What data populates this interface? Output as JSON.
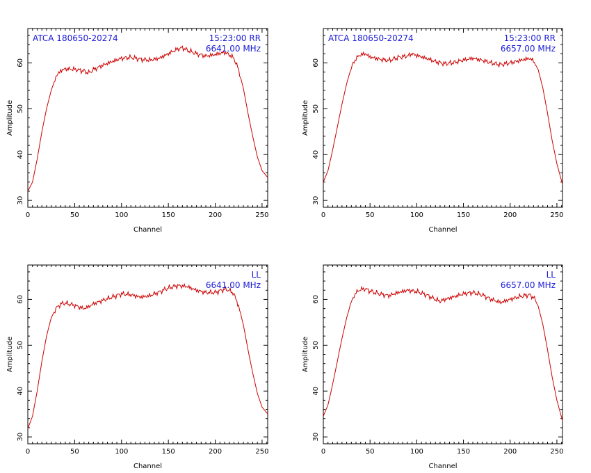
{
  "colors": {
    "line": "#cc0000",
    "annotation": "#1a1ad6",
    "axes": "#000000",
    "background": "#ffffff"
  },
  "chart_data": [
    {
      "type": "line",
      "title": "",
      "xlabel": "Channel",
      "ylabel": "Amplitude",
      "xlim": [
        0,
        256
      ],
      "ylim": [
        28.5,
        67.5
      ],
      "xticks": [
        0,
        50,
        100,
        150,
        200,
        250
      ],
      "yticks": [
        30,
        40,
        50,
        60
      ],
      "grid": false,
      "annotations": {
        "source": "ATCA 180650-20274",
        "time": "15:23:00",
        "pol": "RR",
        "freq": "6641.00 MHz"
      },
      "series": [
        {
          "x": [
            0,
            5,
            10,
            15,
            20,
            25,
            30,
            35,
            40,
            50,
            60,
            65,
            70,
            80,
            90,
            100,
            110,
            120,
            130,
            140,
            150,
            160,
            165,
            170,
            180,
            190,
            200,
            210,
            215,
            220,
            225,
            230,
            235,
            240,
            245,
            250,
            256
          ],
          "y": [
            32.0,
            34.0,
            39.0,
            45.0,
            50.0,
            54.0,
            57.0,
            58.3,
            58.7,
            58.6,
            58.2,
            57.8,
            58.5,
            59.5,
            60.3,
            61.0,
            61.2,
            60.8,
            60.6,
            61.0,
            62.0,
            63.0,
            63.3,
            62.8,
            62.0,
            61.5,
            61.8,
            62.3,
            61.8,
            61.0,
            58.5,
            54.5,
            49.0,
            44.0,
            39.5,
            36.5,
            35.0
          ]
        }
      ]
    },
    {
      "type": "line",
      "title": "",
      "xlabel": "Channel",
      "ylabel": "Amplitude",
      "xlim": [
        0,
        256
      ],
      "ylim": [
        28.5,
        67.5
      ],
      "xticks": [
        0,
        50,
        100,
        150,
        200,
        250
      ],
      "yticks": [
        30,
        40,
        50,
        60
      ],
      "grid": false,
      "annotations": {
        "source": "ATCA 180650-20274",
        "time": "15:23:00",
        "pol": "RR",
        "freq": "6657.00 MHz"
      },
      "series": [
        {
          "x": [
            0,
            5,
            10,
            15,
            20,
            25,
            30,
            35,
            40,
            45,
            50,
            60,
            70,
            80,
            90,
            95,
            100,
            110,
            120,
            130,
            140,
            150,
            160,
            170,
            180,
            190,
            200,
            210,
            220,
            225,
            230,
            235,
            240,
            245,
            250,
            256
          ],
          "y": [
            34.0,
            36.5,
            41.0,
            46.0,
            51.0,
            55.5,
            59.0,
            61.0,
            61.8,
            62.0,
            61.3,
            60.8,
            60.5,
            61.2,
            61.5,
            62.0,
            61.6,
            61.0,
            60.3,
            59.8,
            60.1,
            60.6,
            61.0,
            60.6,
            60.0,
            59.6,
            60.0,
            60.5,
            61.0,
            60.5,
            58.5,
            54.5,
            49.0,
            43.0,
            38.0,
            33.5
          ]
        }
      ]
    },
    {
      "type": "line",
      "title": "",
      "xlabel": "Channel",
      "ylabel": "Amplitude",
      "xlim": [
        0,
        256
      ],
      "ylim": [
        28.5,
        67.5
      ],
      "xticks": [
        0,
        50,
        100,
        150,
        200,
        250
      ],
      "yticks": [
        30,
        40,
        50,
        60
      ],
      "grid": false,
      "annotations": {
        "pol": "LL",
        "freq": "6641.00 MHz"
      },
      "series": [
        {
          "x": [
            0,
            5,
            10,
            15,
            20,
            25,
            30,
            35,
            40,
            50,
            55,
            60,
            65,
            70,
            80,
            90,
            100,
            110,
            120,
            130,
            140,
            150,
            160,
            170,
            180,
            190,
            200,
            210,
            215,
            220,
            225,
            230,
            235,
            240,
            245,
            250,
            256
          ],
          "y": [
            31.8,
            34.5,
            40.0,
            46.5,
            52.0,
            56.0,
            58.0,
            59.0,
            59.2,
            58.7,
            58.3,
            58.0,
            58.4,
            59.0,
            59.8,
            60.5,
            61.2,
            61.0,
            60.5,
            60.8,
            61.6,
            62.5,
            63.0,
            62.8,
            62.0,
            61.5,
            61.5,
            62.2,
            62.0,
            61.2,
            58.5,
            54.5,
            49.0,
            44.0,
            39.5,
            36.5,
            35.0
          ]
        }
      ]
    },
    {
      "type": "line",
      "title": "",
      "xlabel": "Channel",
      "ylabel": "Amplitude",
      "xlim": [
        0,
        256
      ],
      "ylim": [
        28.5,
        67.5
      ],
      "xticks": [
        0,
        50,
        100,
        150,
        200,
        250
      ],
      "yticks": [
        30,
        40,
        50,
        60
      ],
      "grid": false,
      "annotations": {
        "pol": "LL",
        "freq": "6657.00 MHz"
      },
      "series": [
        {
          "x": [
            0,
            5,
            10,
            15,
            20,
            25,
            30,
            35,
            40,
            45,
            50,
            60,
            70,
            80,
            90,
            100,
            110,
            120,
            125,
            130,
            140,
            150,
            160,
            170,
            180,
            190,
            200,
            210,
            220,
            225,
            230,
            235,
            240,
            245,
            250,
            256
          ],
          "y": [
            34.5,
            37.0,
            41.5,
            46.5,
            51.5,
            56.0,
            59.5,
            61.5,
            62.2,
            62.3,
            61.8,
            61.2,
            60.8,
            61.5,
            62.0,
            61.7,
            61.0,
            60.0,
            59.6,
            60.0,
            60.6,
            61.2,
            61.5,
            61.0,
            60.0,
            59.3,
            60.0,
            60.6,
            61.0,
            60.5,
            58.5,
            54.5,
            49.0,
            43.0,
            38.0,
            33.5
          ]
        }
      ]
    }
  ]
}
